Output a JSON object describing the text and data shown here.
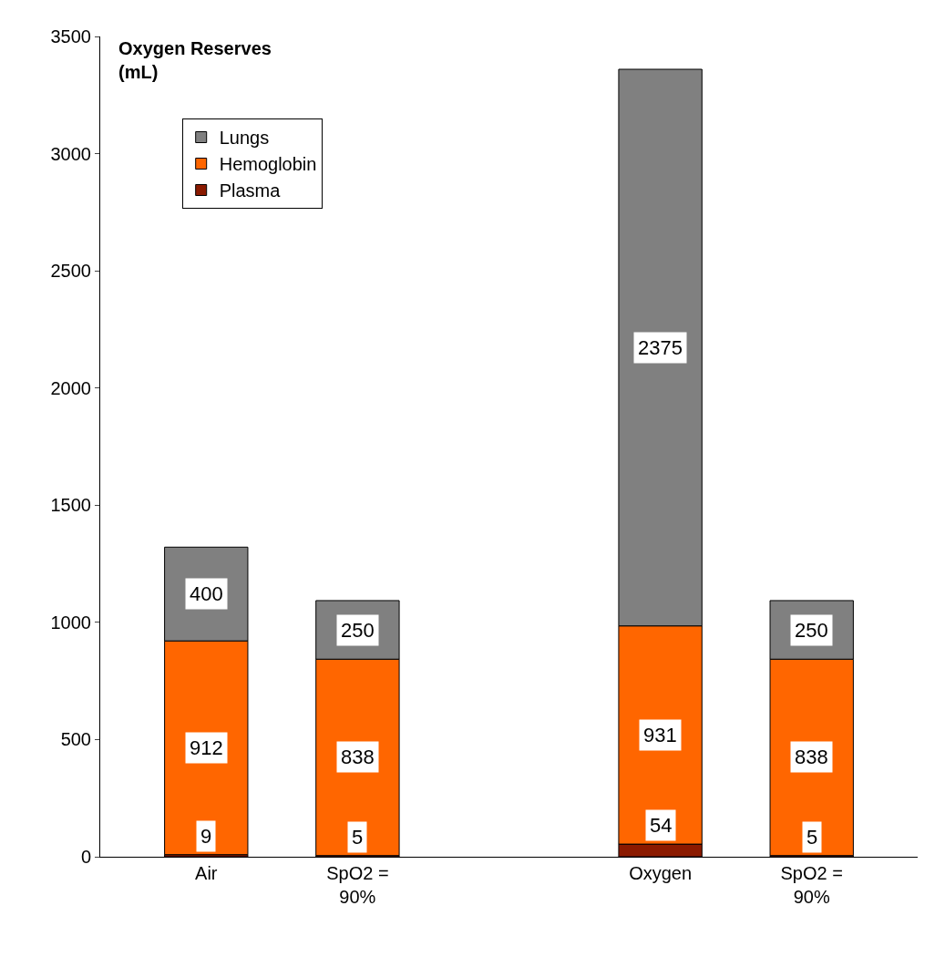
{
  "chart_data": {
    "type": "bar",
    "title": "Oxygen Reserves\n(mL)",
    "stacked": true,
    "categories": [
      "Air",
      "SpO2 =\n90%",
      null,
      "Oxygen",
      "SpO2 =\n90%"
    ],
    "series": [
      {
        "name": "Plasma",
        "color": "#8b1a00",
        "values": [
          9,
          5,
          null,
          54,
          5
        ]
      },
      {
        "name": "Hemoglobin",
        "color": "#ff6600",
        "values": [
          912,
          838,
          null,
          931,
          838
        ]
      },
      {
        "name": "Lungs",
        "color": "#808080",
        "values": [
          400,
          250,
          null,
          2375,
          250
        ]
      }
    ],
    "ylim": [
      0,
      3500
    ],
    "yticks": [
      0,
      500,
      1000,
      1500,
      2000,
      2500,
      3000,
      3500
    ],
    "legend": "top left",
    "data_labels": true
  }
}
